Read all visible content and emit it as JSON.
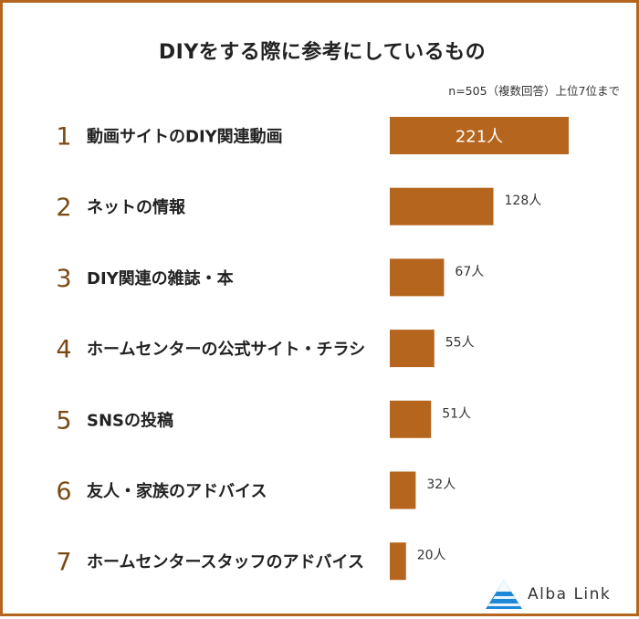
{
  "header": {
    "title": "DIYをする際に参考にしているもの",
    "note": "n=505（複数回答）上位7位まで"
  },
  "colors": {
    "bar": "#b5651d",
    "rank": "#7a4a14",
    "frame": "#b5651d"
  },
  "chart_data": {
    "type": "bar",
    "orientation": "horizontal",
    "title": "DIYをする際に参考にしているもの",
    "categories": [
      "動画サイトのDIY関連動画",
      "ネットの情報",
      "DIY関連の雑誌・本",
      "ホームセンターの公式サイト・チラシ",
      "SNSの投稿",
      "友人・家族のアドバイス",
      "ホームセンタースタッフのアドバイス"
    ],
    "ranks": [
      "1",
      "2",
      "3",
      "4",
      "5",
      "6",
      "7"
    ],
    "values": [
      221,
      128,
      67,
      55,
      51,
      32,
      20
    ],
    "value_labels": [
      "221人",
      "128人",
      "67人",
      "55人",
      "51人",
      "32人",
      "20人"
    ]
  },
  "logo": {
    "text": "Alba Link"
  }
}
